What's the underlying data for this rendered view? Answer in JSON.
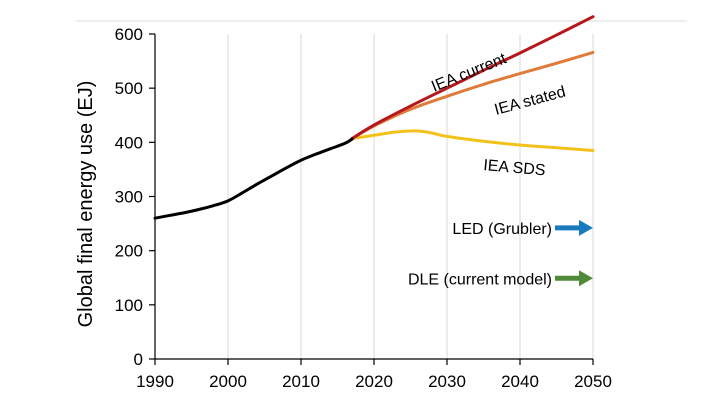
{
  "chart_data": {
    "type": "line",
    "title": "",
    "xlabel": "",
    "ylabel": "Global final energy use (EJ)",
    "xlim": [
      1990,
      2050
    ],
    "ylim": [
      0,
      600
    ],
    "x_ticks": [
      1990,
      2000,
      2010,
      2020,
      2030,
      2040,
      2050
    ],
    "y_ticks": [
      0,
      100,
      200,
      300,
      400,
      500,
      600
    ],
    "grid": "vertical",
    "legend": "none",
    "series": [
      {
        "color": "#000000",
        "x": [
          1990,
          1992,
          1994,
          1996,
          1998,
          2000,
          2002,
          2004,
          2006,
          2008,
          2010,
          2012,
          2014,
          2016,
          2017
        ],
        "y": [
          260,
          265,
          270,
          276,
          283,
          292,
          307,
          323,
          338,
          353,
          367,
          378,
          388,
          398,
          406
        ]
      },
      {
        "name": "IEA current",
        "color": "#b5171c",
        "x": [
          2017,
          2020,
          2025,
          2030,
          2035,
          2040,
          2045,
          2050
        ],
        "y": [
          407,
          432,
          467,
          500,
          533,
          565,
          598,
          632
        ]
      },
      {
        "name": "IEA stated",
        "color": "#e07b39",
        "x": [
          2017,
          2020,
          2025,
          2030,
          2035,
          2040,
          2045,
          2050
        ],
        "y": [
          407,
          430,
          461,
          485,
          507,
          527,
          546,
          566
        ]
      },
      {
        "name": "IEA SDS",
        "color": "#f2c21b",
        "x": [
          2017,
          2020,
          2023,
          2026,
          2028,
          2030,
          2035,
          2040,
          2045,
          2050
        ],
        "y": [
          407,
          413,
          419,
          421,
          417,
          411,
          402,
          395,
          390,
          385
        ]
      }
    ],
    "arrows": [
      {
        "label": "LED (Grubler)",
        "color": "#1a7abf",
        "x": 2050,
        "y": 242
      },
      {
        "label": "DLE (current model)",
        "color": "#4f8a3a",
        "x": 2050,
        "y": 149
      }
    ]
  }
}
